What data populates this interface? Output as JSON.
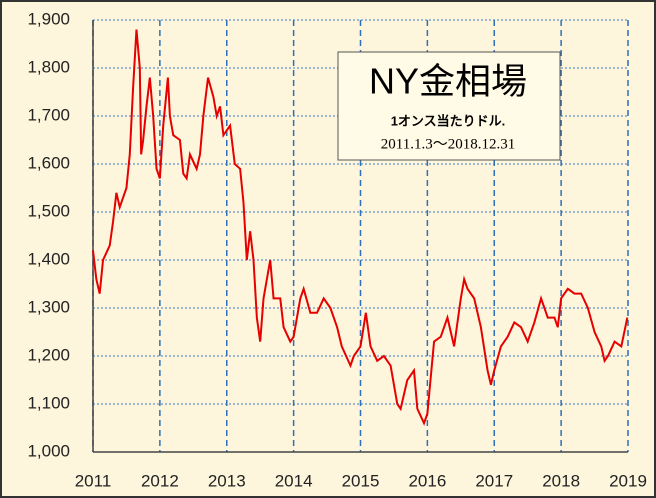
{
  "chart_data": {
    "type": "line",
    "title": "NY金相場",
    "subtitle": "1オンス当たりドル.",
    "annotation": "2011.1.3～2018.12.31",
    "x": [
      2011.0,
      2011.05,
      2011.1,
      2011.15,
      2011.25,
      2011.3,
      2011.35,
      2011.4,
      2011.45,
      2011.5,
      2011.55,
      2011.6,
      2011.65,
      2011.7,
      2011.72,
      2011.75,
      2011.8,
      2011.85,
      2011.9,
      2011.95,
      2012.0,
      2012.05,
      2012.12,
      2012.15,
      2012.2,
      2012.3,
      2012.35,
      2012.4,
      2012.45,
      2012.55,
      2012.6,
      2012.65,
      2012.72,
      2012.8,
      2012.85,
      2012.9,
      2012.95,
      2013.05,
      2013.12,
      2013.2,
      2013.25,
      2013.3,
      2013.35,
      2013.4,
      2013.45,
      2013.5,
      2013.55,
      2013.65,
      2013.7,
      2013.8,
      2013.85,
      2013.95,
      2014.0,
      2014.1,
      2014.15,
      2014.25,
      2014.35,
      2014.45,
      2014.55,
      2014.65,
      2014.72,
      2014.85,
      2014.9,
      2015.0,
      2015.08,
      2015.15,
      2015.25,
      2015.35,
      2015.45,
      2015.55,
      2015.6,
      2015.7,
      2015.8,
      2015.85,
      2015.95,
      2016.0,
      2016.1,
      2016.2,
      2016.3,
      2016.4,
      2016.5,
      2016.55,
      2016.6,
      2016.7,
      2016.8,
      2016.9,
      2016.95,
      2017.0,
      2017.1,
      2017.2,
      2017.3,
      2017.4,
      2017.5,
      2017.6,
      2017.7,
      2017.8,
      2017.9,
      2017.95,
      2018.0,
      2018.1,
      2018.2,
      2018.3,
      2018.4,
      2018.5,
      2018.6,
      2018.65,
      2018.7,
      2018.8,
      2018.9,
      2018.99
    ],
    "series": [
      {
        "name": "NY金",
        "color": "#e60000",
        "values": [
          1420,
          1360,
          1330,
          1400,
          1430,
          1480,
          1540,
          1510,
          1530,
          1550,
          1620,
          1760,
          1880,
          1800,
          1620,
          1650,
          1720,
          1780,
          1700,
          1590,
          1570,
          1680,
          1780,
          1700,
          1660,
          1650,
          1580,
          1570,
          1620,
          1590,
          1620,
          1700,
          1780,
          1740,
          1700,
          1720,
          1660,
          1680,
          1600,
          1590,
          1520,
          1400,
          1460,
          1400,
          1280,
          1230,
          1320,
          1400,
          1320,
          1320,
          1260,
          1230,
          1240,
          1320,
          1340,
          1290,
          1290,
          1320,
          1300,
          1260,
          1220,
          1180,
          1200,
          1220,
          1290,
          1220,
          1190,
          1200,
          1180,
          1100,
          1090,
          1150,
          1170,
          1090,
          1060,
          1080,
          1230,
          1240,
          1280,
          1220,
          1320,
          1360,
          1340,
          1320,
          1260,
          1170,
          1140,
          1170,
          1220,
          1240,
          1270,
          1260,
          1230,
          1270,
          1320,
          1280,
          1280,
          1260,
          1320,
          1340,
          1330,
          1330,
          1300,
          1250,
          1220,
          1190,
          1200,
          1230,
          1220,
          1280
        ]
      }
    ],
    "xlim": [
      2011,
      2019
    ],
    "xticks": [
      2011,
      2012,
      2013,
      2014,
      2015,
      2016,
      2017,
      2018,
      2019
    ],
    "ylim": [
      1000,
      1900
    ],
    "yticks": [
      {
        "value": 1000,
        "label": "1,000"
      },
      {
        "value": 1100,
        "label": "1,100"
      },
      {
        "value": 1200,
        "label": "1,200"
      },
      {
        "value": 1300,
        "label": "1,300"
      },
      {
        "value": 1400,
        "label": "1,400"
      },
      {
        "value": 1500,
        "label": "1,500"
      },
      {
        "value": 1600,
        "label": "1,600"
      },
      {
        "value": 1700,
        "label": "1,700"
      },
      {
        "value": 1800,
        "label": "1,800"
      },
      {
        "value": 1900,
        "label": "1,900"
      }
    ],
    "grid": true
  }
}
